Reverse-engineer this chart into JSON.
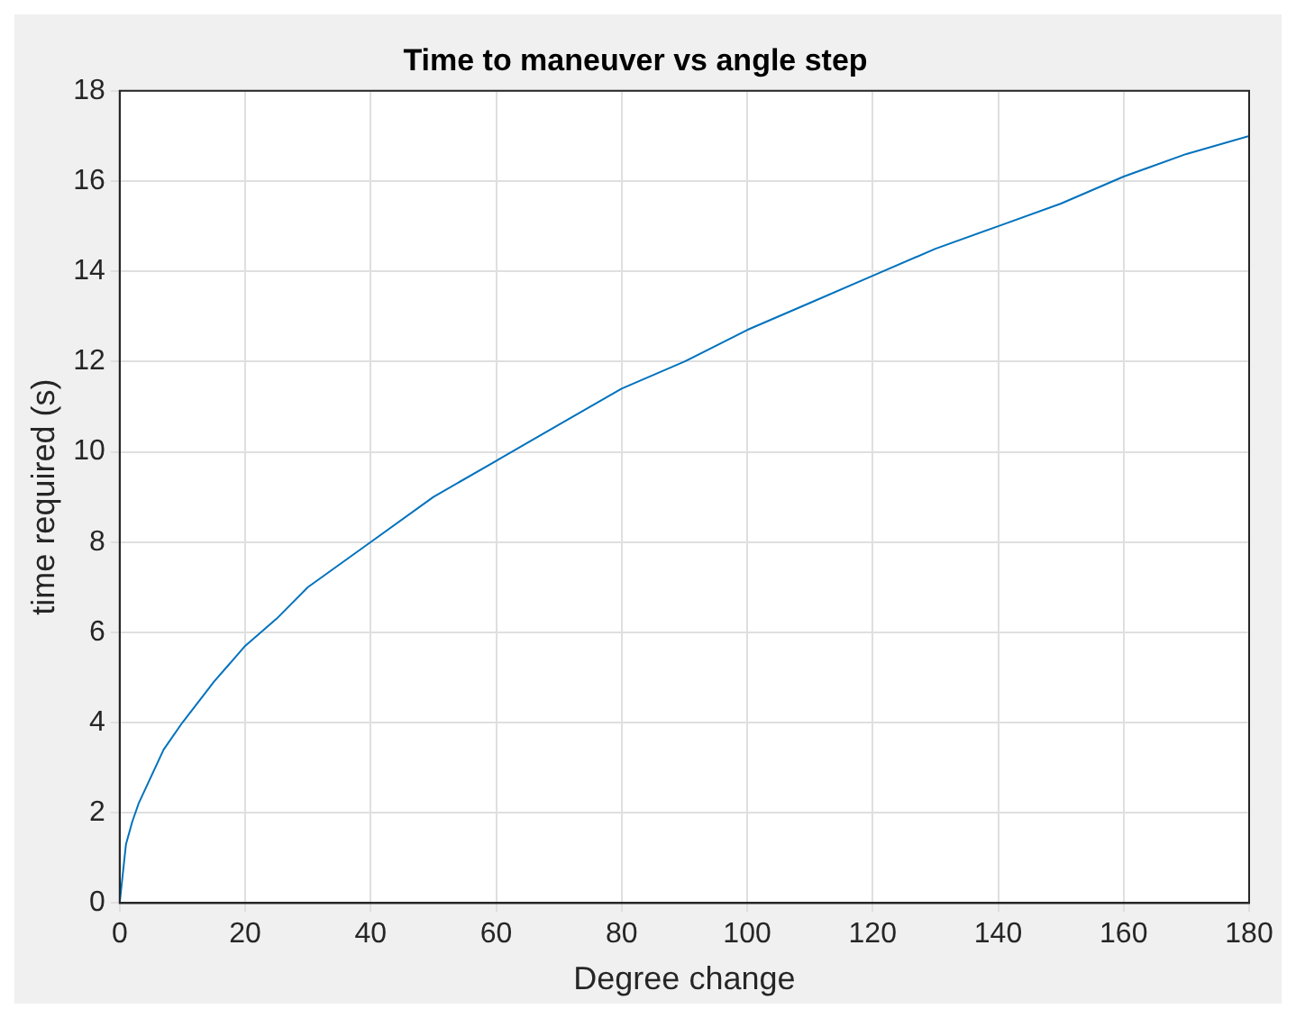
{
  "chart_data": {
    "type": "line",
    "title": "Time to maneuver vs angle step",
    "xlabel": "Degree change",
    "ylabel": "time required (s)",
    "x": [
      0,
      1,
      2,
      3,
      5,
      7,
      10,
      15,
      20,
      25,
      30,
      40,
      50,
      60,
      70,
      80,
      90,
      100,
      110,
      120,
      130,
      140,
      150,
      160,
      170,
      180
    ],
    "series": [
      {
        "color": "#0072bd",
        "values": [
          0,
          1.3,
          1.8,
          2.2,
          2.8,
          3.4,
          4.0,
          4.9,
          5.7,
          6.3,
          7.0,
          8.0,
          9.0,
          9.8,
          10.6,
          11.4,
          12.0,
          12.7,
          13.3,
          13.9,
          14.5,
          15.0,
          15.5,
          16.1,
          16.6,
          17.0
        ]
      }
    ],
    "xlim": [
      0,
      180
    ],
    "xticks": [
      0,
      20,
      40,
      60,
      80,
      100,
      120,
      140,
      160,
      180
    ],
    "ylim": [
      0,
      18
    ],
    "yticks": [
      0,
      2,
      4,
      6,
      8,
      10,
      12,
      14,
      16,
      18
    ],
    "grid": true,
    "legend": false,
    "marker": "none",
    "line_style": "solid"
  }
}
